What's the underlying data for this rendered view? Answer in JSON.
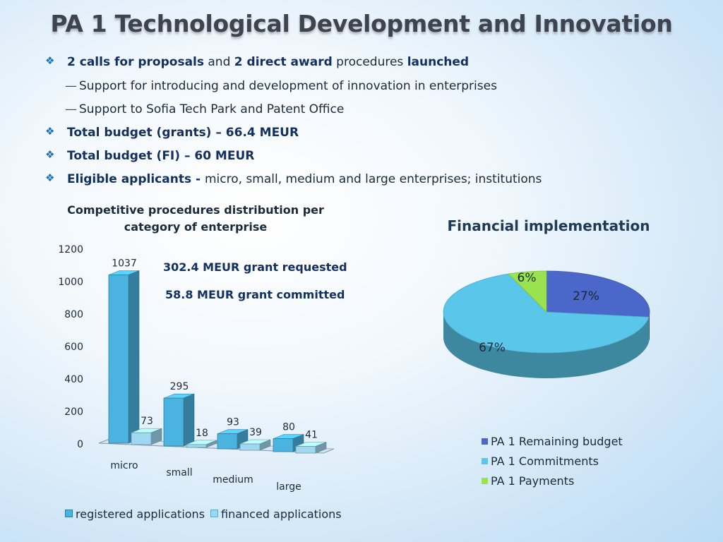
{
  "title": "PA 1 Technological Development and Innovation",
  "bullets": [
    {
      "b1": "2 calls for proposals",
      "t1": " and ",
      "b2": "2 direct award",
      "t2": " procedures ",
      "b3": "launched"
    },
    {
      "sub": "Support for introducing and development of innovation in enterprises"
    },
    {
      "sub": "Support to Sofia Tech Park and Patent Office"
    },
    {
      "b1": "Total budget (grants) – 66.4 MEUR"
    },
    {
      "b1": "Total budget (FI) – 60 MEUR"
    },
    {
      "b1": "Eligible applicants - ",
      "t1": "micro, small, medium and large enterprises; institutions"
    }
  ],
  "annotations": {
    "requested": "302.4 MEUR grant requested",
    "committed": "58.8 MEUR grant committed"
  },
  "chart_data": [
    {
      "type": "bar",
      "title": "Competitive procedures distribution per category of enterprise",
      "categories": [
        "micro",
        "small",
        "medium",
        "large"
      ],
      "series": [
        {
          "name": "registered applications",
          "values": [
            1037,
            295,
            93,
            80
          ],
          "color": "#4bb3df"
        },
        {
          "name": "financed applications",
          "values": [
            73,
            18,
            39,
            41
          ],
          "color": "#9fd8f0"
        }
      ],
      "ylim": [
        0,
        1200
      ],
      "yticks": [
        0,
        200,
        400,
        600,
        800,
        1000,
        1200
      ],
      "legend_position": "bottom"
    },
    {
      "type": "pie",
      "title": "Financial implementation",
      "labels": [
        "PA 1 Remaining budget",
        "PA 1 Commitments",
        "PA 1 Payments"
      ],
      "values": [
        27,
        67,
        6
      ],
      "value_labels": [
        "27%",
        "67%",
        "6%"
      ],
      "colors": [
        "#4a67c9",
        "#5ac6ea",
        "#9be24f"
      ],
      "legend_position": "right"
    }
  ]
}
